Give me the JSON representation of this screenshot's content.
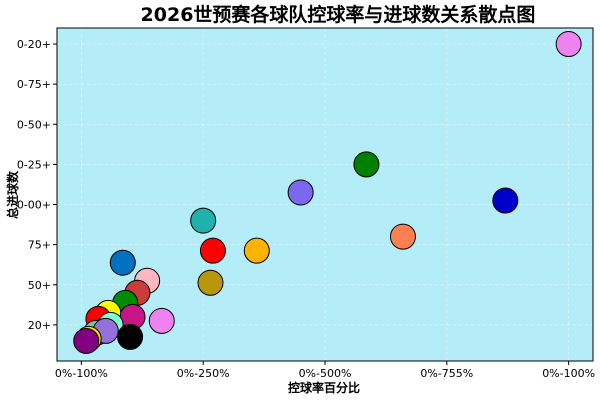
{
  "chart_data": {
    "type": "scatter",
    "title": "2026世预赛各球队控球率与进球数关系散点图",
    "xlabel": "控球率百分比",
    "ylabel": "总进球数",
    "background": "#b4ecf7",
    "grid": true,
    "x_ticks": [
      {
        "value": 0,
        "label": "0%-100%"
      },
      {
        "value": 25,
        "label": "0%-250%"
      },
      {
        "value": 50,
        "label": "0%-500%"
      },
      {
        "value": 75,
        "label": "0%-755%"
      },
      {
        "value": 100,
        "label": "0%-100%"
      }
    ],
    "y_ticks": [
      {
        "value": 1,
        "label": "20+"
      },
      {
        "value": 2,
        "label": "50+"
      },
      {
        "value": 3,
        "label": "75+"
      },
      {
        "value": 4,
        "label": "0-00+"
      },
      {
        "value": 5,
        "label": "0-25+"
      },
      {
        "value": 6,
        "label": "0-50+"
      },
      {
        "value": 7,
        "label": "0-75+"
      },
      {
        "value": 8,
        "label": "0-20+"
      }
    ],
    "xlim": [
      -5,
      105
    ],
    "ylim": [
      0.1,
      8.4
    ],
    "points": [
      {
        "x": 100,
        "y": 8.0,
        "color": "#ee82ee"
      },
      {
        "x": 87,
        "y": 4.1,
        "color": "#0000cd"
      },
      {
        "x": 58.5,
        "y": 5.0,
        "color": "#008000"
      },
      {
        "x": 45,
        "y": 4.3,
        "color": "#7b68ee"
      },
      {
        "x": 66,
        "y": 3.2,
        "color": "#ff7f50"
      },
      {
        "x": 25,
        "y": 3.6,
        "color": "#20b2aa"
      },
      {
        "x": 27,
        "y": 2.85,
        "color": "#ff0000"
      },
      {
        "x": 36,
        "y": 2.85,
        "color": "#ffb300"
      },
      {
        "x": 26.5,
        "y": 2.05,
        "color": "#b8960b"
      },
      {
        "x": 13.5,
        "y": 2.1,
        "color": "#ffb6c1"
      },
      {
        "x": 8.5,
        "y": 2.55,
        "color": "#0070c0"
      },
      {
        "x": 11.5,
        "y": 1.8,
        "color": "#cd3a3a"
      },
      {
        "x": 9,
        "y": 1.55,
        "color": "#008b00"
      },
      {
        "x": 16.5,
        "y": 1.1,
        "color": "#ee82ee"
      },
      {
        "x": 10.5,
        "y": 1.2,
        "color": "#c71585"
      },
      {
        "x": 5.5,
        "y": 1.3,
        "color": "#ffff00"
      },
      {
        "x": 3.5,
        "y": 1.15,
        "color": "#ff0000"
      },
      {
        "x": 6,
        "y": 1.0,
        "color": "#7fffd4"
      },
      {
        "x": 3,
        "y": 0.8,
        "color": "#66cdaa"
      },
      {
        "x": 5,
        "y": 0.85,
        "color": "#9370db"
      },
      {
        "x": 10,
        "y": 0.7,
        "color": "#000000"
      },
      {
        "x": 1.5,
        "y": 0.65,
        "color": "#ffd700"
      },
      {
        "x": 1,
        "y": 0.6,
        "color": "#800080"
      }
    ]
  }
}
